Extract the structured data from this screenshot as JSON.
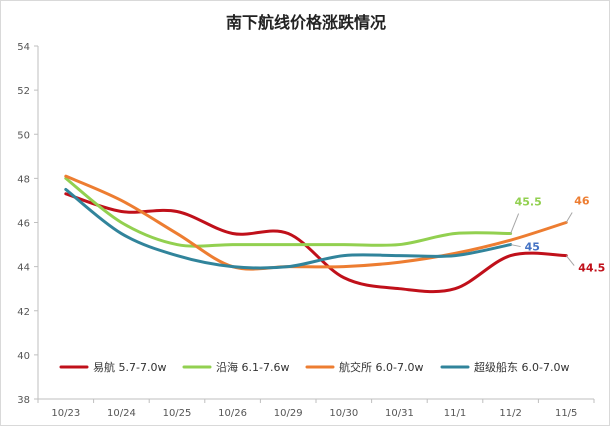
{
  "chart_data": {
    "type": "line",
    "title": "南下航线价格涨跌情况",
    "categories": [
      "10/23",
      "10/24",
      "10/25",
      "10/26",
      "10/29",
      "10/30",
      "10/31",
      "11/1",
      "11/2",
      "11/5"
    ],
    "ylim": [
      38,
      54
    ],
    "yticks": [
      38,
      40,
      42,
      44,
      46,
      48,
      50,
      52,
      54
    ],
    "grid": false,
    "legend_position": "bottom-left",
    "series": [
      {
        "name": "易航 5.7-7.0w",
        "color": "#c0101a",
        "values": [
          47.3,
          46.5,
          46.5,
          45.5,
          45.5,
          43.5,
          43.0,
          43.0,
          44.5,
          44.5
        ],
        "end_label": "44.5",
        "end_label_color": "#c0101a"
      },
      {
        "name": "沿海 6.1-7.6w",
        "color": "#92d050",
        "values": [
          48.0,
          46.0,
          45.0,
          45.0,
          45.0,
          45.0,
          45.0,
          45.5,
          45.5,
          null
        ],
        "end_label": "45.5",
        "end_label_color": "#92d050"
      },
      {
        "name": "航交所 6.0-7.0w",
        "color": "#ed7d31",
        "values": [
          48.1,
          47.0,
          45.5,
          44.0,
          44.0,
          44.0,
          44.2,
          44.6,
          45.2,
          46.0
        ],
        "end_label": "46",
        "end_label_color": "#ed7d31"
      },
      {
        "name": "超级船东 6.0-7.0w",
        "color": "#31849b",
        "values": [
          47.5,
          45.5,
          44.5,
          44.0,
          44.0,
          44.5,
          44.5,
          44.5,
          45.0,
          null
        ],
        "end_label": "45",
        "end_label_color": "#4472c4"
      }
    ]
  }
}
